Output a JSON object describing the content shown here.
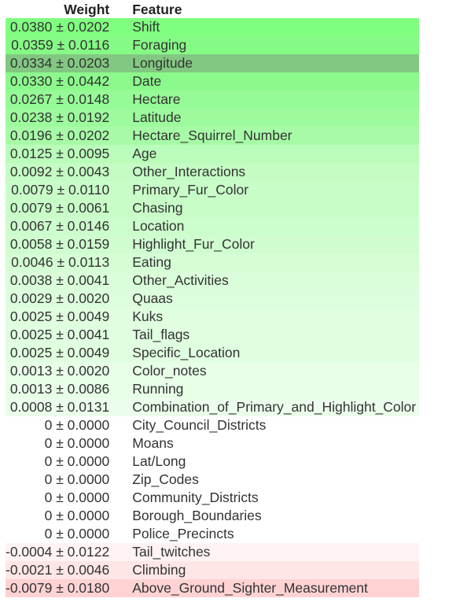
{
  "table": {
    "headers": {
      "weight": "Weight",
      "feature": "Feature"
    },
    "rows": [
      {
        "weight": "0.0380 ± 0.0202",
        "feature": "Shift",
        "color": "#80ff80"
      },
      {
        "weight": "0.0359 ± 0.0116",
        "feature": "Foraging",
        "color": "#85fa85"
      },
      {
        "weight": "0.0334 ± 0.0203",
        "feature": "Longitude",
        "color": "#82c882"
      },
      {
        "weight": "0.0330 ± 0.0442",
        "feature": "Date",
        "color": "#8cf98c"
      },
      {
        "weight": "0.0267 ± 0.0148",
        "feature": "Hectare",
        "color": "#96fa96"
      },
      {
        "weight": "0.0238 ± 0.0192",
        "feature": "Latitude",
        "color": "#9dfb9d"
      },
      {
        "weight": "0.0196 ± 0.0202",
        "feature": "Hectare_Squirrel_Number",
        "color": "#a7fba7"
      },
      {
        "weight": "0.0125 ± 0.0095",
        "feature": "Age",
        "color": "#bafcba"
      },
      {
        "weight": "0.0092 ± 0.0043",
        "feature": "Other_Interactions",
        "color": "#c4fcc4"
      },
      {
        "weight": "0.0079 ± 0.0110",
        "feature": "Primary_Fur_Color",
        "color": "#c8fdc8"
      },
      {
        "weight": "0.0079 ± 0.0061",
        "feature": "Chasing",
        "color": "#c8fdc8"
      },
      {
        "weight": "0.0067 ± 0.0146",
        "feature": "Location",
        "color": "#ccfdcc"
      },
      {
        "weight": "0.0058 ± 0.0159",
        "feature": "Highlight_Fur_Color",
        "color": "#d0fdd0"
      },
      {
        "weight": "0.0046 ± 0.0113",
        "feature": "Eating",
        "color": "#d5fed5"
      },
      {
        "weight": "0.0038 ± 0.0041",
        "feature": "Other_Activities",
        "color": "#d9fed9"
      },
      {
        "weight": "0.0029 ± 0.0020",
        "feature": "Quaas",
        "color": "#ddfedd"
      },
      {
        "weight": "0.0025 ± 0.0049",
        "feature": "Kuks",
        "color": "#e0fee0"
      },
      {
        "weight": "0.0025 ± 0.0041",
        "feature": "Tail_flags",
        "color": "#e0fee0"
      },
      {
        "weight": "0.0025 ± 0.0049",
        "feature": "Specific_Location",
        "color": "#e0fee0"
      },
      {
        "weight": "0.0013 ± 0.0020",
        "feature": "Color_notes",
        "color": "#e7fee7"
      },
      {
        "weight": "0.0013 ± 0.0086",
        "feature": "Running",
        "color": "#e7fee7"
      },
      {
        "weight": "0.0008 ± 0.0131",
        "feature": "Combination_of_Primary_and_Highlight_Color",
        "color": "#ebfeeb"
      },
      {
        "weight": "0 ± 0.0000",
        "feature": "City_Council_Districts",
        "color": "#ffffff"
      },
      {
        "weight": "0 ± 0.0000",
        "feature": "Moans",
        "color": "#ffffff"
      },
      {
        "weight": "0 ± 0.0000",
        "feature": "Lat/Long",
        "color": "#ffffff"
      },
      {
        "weight": "0 ± 0.0000",
        "feature": "Zip_Codes",
        "color": "#ffffff"
      },
      {
        "weight": "0 ± 0.0000",
        "feature": "Community_Districts",
        "color": "#ffffff"
      },
      {
        "weight": "0 ± 0.0000",
        "feature": "Borough_Boundaries",
        "color": "#ffffff"
      },
      {
        "weight": "0 ± 0.0000",
        "feature": "Police_Precincts",
        "color": "#ffffff"
      },
      {
        "weight": "-0.0004 ± 0.0122",
        "feature": "Tail_twitches",
        "color": "#fff3f3"
      },
      {
        "weight": "-0.0021 ± 0.0046",
        "feature": "Climbing",
        "color": "#ffe6e6"
      },
      {
        "weight": "-0.0079 ± 0.0180",
        "feature": "Above_Ground_Sighter_Measurement",
        "color": "#ffd3d3"
      }
    ]
  }
}
